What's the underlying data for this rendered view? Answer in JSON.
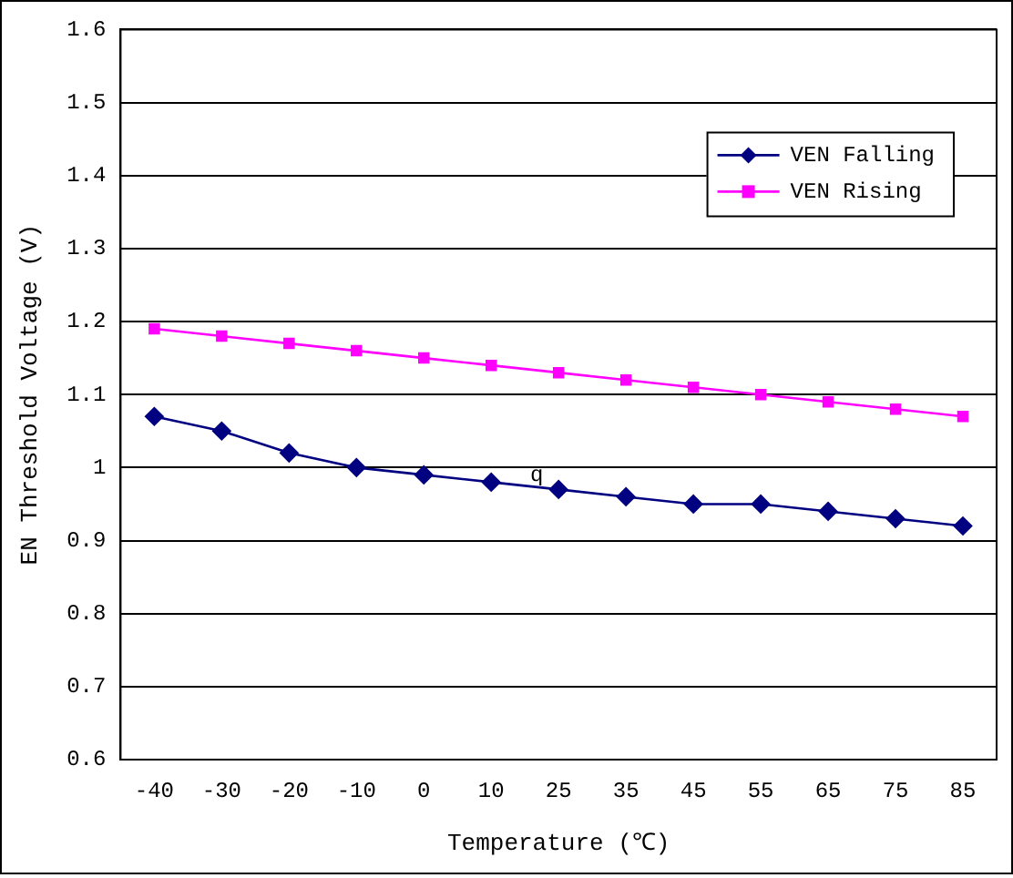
{
  "chart_data": {
    "type": "line",
    "xlabel": "Temperature (℃)",
    "ylabel": "EN Threshold Voltage (V)",
    "categories": [
      "-40",
      "-30",
      "-20",
      "-10",
      "0",
      "10",
      "25",
      "35",
      "45",
      "55",
      "65",
      "75",
      "85"
    ],
    "series": [
      {
        "name": "VEN Falling",
        "color": "#000080",
        "marker": "diamond",
        "values": [
          1.07,
          1.05,
          1.02,
          1.0,
          0.99,
          0.98,
          0.97,
          0.96,
          0.95,
          0.95,
          0.94,
          0.93,
          0.92
        ]
      },
      {
        "name": "VEN Rising",
        "color": "#ff00ff",
        "marker": "square",
        "values": [
          1.19,
          1.18,
          1.17,
          1.16,
          1.15,
          1.14,
          1.13,
          1.12,
          1.11,
          1.1,
          1.09,
          1.08,
          1.07
        ]
      }
    ],
    "ylim": [
      0.6,
      1.6
    ],
    "yticks": [
      0.6,
      0.7,
      0.8,
      0.9,
      1,
      1.1,
      1.2,
      1.3,
      1.4,
      1.5,
      1.6
    ],
    "grid": "y",
    "legend": "top right",
    "line_style": "solid",
    "annotations": [
      {
        "text": "q",
        "x": "25",
        "y": 0.99
      }
    ]
  }
}
